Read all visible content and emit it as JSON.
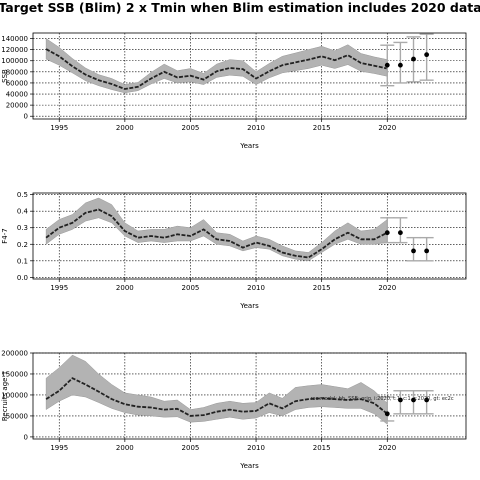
{
  "title": "Target SSB (Blim) 2 x Tmin when Blim estimation includes 2020 data",
  "chart_data": [
    {
      "type": "line",
      "xlabel": "Years",
      "ylabel": "SSB",
      "xlim": [
        1993,
        2026
      ],
      "ylim": [
        -5000,
        150000
      ],
      "xticks": [
        1995,
        2000,
        2005,
        2010,
        2015,
        2020
      ],
      "yticks": [
        0,
        20000,
        40000,
        60000,
        80000,
        100000,
        120000,
        140000
      ],
      "grid": true,
      "years": [
        1994,
        1995,
        1996,
        1997,
        1998,
        1999,
        2000,
        2001,
        2002,
        2003,
        2004,
        2005,
        2006,
        2007,
        2008,
        2009,
        2010,
        2011,
        2012,
        2013,
        2014,
        2015,
        2016,
        2017,
        2018,
        2019,
        2020
      ],
      "estimate": [
        121000,
        108000,
        90000,
        75000,
        65000,
        58000,
        49000,
        53000,
        68000,
        80000,
        70000,
        73000,
        66000,
        81000,
        87000,
        85000,
        68000,
        81000,
        92000,
        97000,
        102000,
        108000,
        101000,
        110000,
        96000,
        91000,
        86000
      ],
      "lower": [
        103000,
        92000,
        78000,
        64000,
        55000,
        48000,
        42000,
        46000,
        58000,
        68000,
        60000,
        62000,
        57000,
        70000,
        74000,
        72000,
        57000,
        69000,
        78000,
        82000,
        86000,
        92000,
        86000,
        93000,
        81000,
        77000,
        72000
      ],
      "upper": [
        140000,
        124000,
        104000,
        87000,
        75000,
        68000,
        57000,
        61000,
        79000,
        94000,
        82000,
        86000,
        77000,
        94000,
        102000,
        100000,
        80000,
        95000,
        108000,
        114000,
        120000,
        126000,
        118000,
        129000,
        113000,
        107000,
        102000
      ],
      "proj_points": [
        {
          "x": 2020,
          "y": 92000,
          "lo": 55000,
          "hi": 128000
        },
        {
          "x": 2021,
          "y": 92000,
          "lo": 60000,
          "hi": 133000
        },
        {
          "x": 2022,
          "y": 103000,
          "lo": 62000,
          "hi": 143000
        },
        {
          "x": 2023,
          "y": 111000,
          "lo": 65000,
          "hi": 148000
        }
      ]
    },
    {
      "type": "line",
      "xlabel": "Years",
      "ylabel": "F4-7",
      "xlim": [
        1993,
        2026
      ],
      "ylim": [
        -0.01,
        0.51
      ],
      "xticks": [
        1995,
        2000,
        2005,
        2010,
        2015,
        2020
      ],
      "yticks": [
        0.0,
        0.1,
        0.2,
        0.3,
        0.4,
        0.5
      ],
      "ytick_labels": [
        "0.0",
        "0.1",
        "0.2",
        "0.3",
        "0.4",
        "0.5"
      ],
      "grid": true,
      "years": [
        1994,
        1995,
        1996,
        1997,
        1998,
        1999,
        2000,
        2001,
        2002,
        2003,
        2004,
        2005,
        2006,
        2007,
        2008,
        2009,
        2010,
        2011,
        2012,
        2013,
        2014,
        2015,
        2016,
        2017,
        2018,
        2019,
        2020
      ],
      "estimate": [
        0.24,
        0.3,
        0.33,
        0.39,
        0.41,
        0.37,
        0.28,
        0.24,
        0.25,
        0.24,
        0.26,
        0.25,
        0.29,
        0.23,
        0.22,
        0.18,
        0.21,
        0.19,
        0.15,
        0.13,
        0.12,
        0.17,
        0.23,
        0.27,
        0.23,
        0.23,
        0.27
      ],
      "lower": [
        0.2,
        0.26,
        0.29,
        0.34,
        0.36,
        0.33,
        0.25,
        0.21,
        0.22,
        0.21,
        0.22,
        0.22,
        0.25,
        0.2,
        0.19,
        0.16,
        0.18,
        0.17,
        0.13,
        0.11,
        0.1,
        0.15,
        0.2,
        0.23,
        0.2,
        0.2,
        0.21
      ],
      "upper": [
        0.29,
        0.35,
        0.38,
        0.45,
        0.48,
        0.44,
        0.33,
        0.28,
        0.29,
        0.29,
        0.31,
        0.3,
        0.35,
        0.27,
        0.26,
        0.22,
        0.25,
        0.23,
        0.19,
        0.16,
        0.15,
        0.21,
        0.28,
        0.33,
        0.28,
        0.29,
        0.35
      ],
      "proj_points": [
        {
          "x": 2020,
          "y": 0.27,
          "lo": 0.21,
          "hi": 0.36
        },
        {
          "x": 2021,
          "y": 0.27,
          "lo": 0.21,
          "hi": 0.36
        },
        {
          "x": 2022,
          "y": 0.16,
          "lo": 0.1,
          "hi": 0.24
        },
        {
          "x": 2023,
          "y": 0.16,
          "lo": 0.1,
          "hi": 0.24
        }
      ]
    },
    {
      "type": "line",
      "xlabel": "Years",
      "ylabel": "Recruits age 1",
      "xlim": [
        1993,
        2026
      ],
      "ylim": [
        -5000,
        200000
      ],
      "xticks": [
        1995,
        2000,
        2005,
        2010,
        2015,
        2020
      ],
      "yticks": [
        0,
        50000,
        100000,
        150000,
        200000
      ],
      "grid": true,
      "annotation": "rec.model: bh, SSB: orig, i:2020, t:1, c:1, r:2020, gt: ec2c",
      "years": [
        1994,
        1995,
        1996,
        1997,
        1998,
        1999,
        2000,
        2001,
        2002,
        2003,
        2004,
        2005,
        2006,
        2007,
        2008,
        2009,
        2010,
        2011,
        2012,
        2013,
        2014,
        2015,
        2016,
        2017,
        2018,
        2019,
        2020
      ],
      "estimate": [
        90000,
        110000,
        140000,
        125000,
        108000,
        90000,
        78000,
        72000,
        70000,
        65000,
        67000,
        50000,
        52000,
        60000,
        65000,
        60000,
        62000,
        80000,
        68000,
        85000,
        90000,
        92000,
        90000,
        88000,
        90000,
        80000,
        55000
      ],
      "lower": [
        65000,
        85000,
        100000,
        95000,
        82000,
        68000,
        58000,
        52000,
        50000,
        47000,
        48000,
        35000,
        37000,
        42000,
        47000,
        42000,
        45000,
        58000,
        50000,
        65000,
        70000,
        72000,
        70000,
        68000,
        68000,
        55000,
        30000
      ],
      "upper": [
        140000,
        165000,
        195000,
        180000,
        150000,
        125000,
        105000,
        100000,
        95000,
        85000,
        88000,
        65000,
        70000,
        80000,
        85000,
        80000,
        82000,
        105000,
        92000,
        118000,
        122000,
        125000,
        120000,
        115000,
        130000,
        110000,
        80000
      ],
      "proj_points": [
        {
          "x": 2020,
          "y": 55000,
          "lo": 38000,
          "hi": 95000
        },
        {
          "x": 2021,
          "y": 88000,
          "lo": 55000,
          "hi": 110000
        },
        {
          "x": 2022,
          "y": 88000,
          "lo": 55000,
          "hi": 110000
        },
        {
          "x": 2023,
          "y": 88000,
          "lo": 55000,
          "hi": 110000
        }
      ]
    }
  ],
  "colors": {
    "band": "#b3b3b3",
    "band_edge": "#999999",
    "line": "#222222",
    "proj_bar": "#aaaaaa",
    "points": "#000000",
    "grid": "#000000"
  }
}
